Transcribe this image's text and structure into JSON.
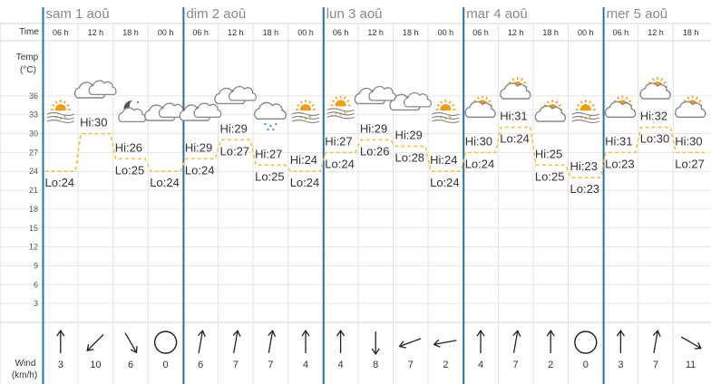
{
  "labels": {
    "time": "Time",
    "temp_line1": "Temp",
    "temp_line2": "(°C)",
    "wind_line1": "Wind",
    "wind_line2": "(km/h)"
  },
  "colors": {
    "day_divider": "#2a6fa8",
    "temp_line": "#f5c242",
    "grid": "#e6e6e6",
    "sun": "#f39c12",
    "cloud_stroke": "#888888",
    "rain": "#5aa0d8",
    "moon": "#445566"
  },
  "chart_data": {
    "type": "line",
    "title": "",
    "ylabel": "Temp (°C)",
    "y_ticks": [
      3,
      6,
      9,
      12,
      15,
      18,
      21,
      24,
      27,
      30,
      33,
      36
    ],
    "ylim": [
      0,
      39
    ],
    "days": [
      "sam 1 aoû",
      "dim 2 aoû",
      "lun 3 aoû",
      "mar 4 aoû",
      "mer 5 aoû"
    ],
    "slots": [
      {
        "day": 0,
        "hour": "06 h",
        "icon": "sun-behind-cloud-mist-icon",
        "temp": 24,
        "hi": "",
        "lo": "Lo:24",
        "wind_dir": 180,
        "wind": "3"
      },
      {
        "day": 0,
        "hour": "12 h",
        "icon": "cloudy-icon",
        "temp": 30,
        "hi": "Hi:30",
        "lo": "",
        "wind_dir": 45,
        "wind": "10"
      },
      {
        "day": 0,
        "hour": "18 h",
        "icon": "moon-cloud-icon",
        "temp": 26,
        "hi": "Hi:26",
        "lo": "Lo:25",
        "wind_dir": 330,
        "wind": "6"
      },
      {
        "day": 1,
        "hour": "00 h",
        "icon": "cloudy-icon",
        "temp": 24,
        "hi": "",
        "lo": "Lo:24",
        "wind_dir": -1,
        "wind": "0"
      },
      {
        "day": 1,
        "hour": "06 h",
        "icon": "cloudy-icon",
        "temp": 26,
        "hi": "Hi:29",
        "lo": "Lo:24",
        "wind_dir": 190,
        "wind": "6"
      },
      {
        "day": 1,
        "hour": "12 h",
        "icon": "cloudy-icon",
        "temp": 29,
        "hi": "Hi:29",
        "lo": "Lo:27",
        "wind_dir": 190,
        "wind": "7"
      },
      {
        "day": 1,
        "hour": "18 h",
        "icon": "rain-cloud-icon",
        "temp": 25,
        "hi": "Hi:27",
        "lo": "Lo:25",
        "wind_dir": 190,
        "wind": "7"
      },
      {
        "day": 2,
        "hour": "00 h",
        "icon": "sun-behind-cloud-mist-icon",
        "temp": 24,
        "hi": "Hi:24",
        "lo": "Lo:24",
        "wind_dir": 180,
        "wind": "4"
      },
      {
        "day": 2,
        "hour": "06 h",
        "icon": "sun-behind-cloud-mist-icon",
        "temp": 27,
        "hi": "Hi:27",
        "lo": "Lo:24",
        "wind_dir": 180,
        "wind": "4"
      },
      {
        "day": 2,
        "hour": "12 h",
        "icon": "cloudy-icon",
        "temp": 29,
        "hi": "Hi:29",
        "lo": "Lo:26",
        "wind_dir": 0,
        "wind": "8"
      },
      {
        "day": 2,
        "hour": "18 h",
        "icon": "cloudy-icon",
        "temp": 28,
        "hi": "Hi:29",
        "lo": "Lo:28",
        "wind_dir": 70,
        "wind": "7"
      },
      {
        "day": 3,
        "hour": "00 h",
        "icon": "sun-behind-cloud-mist-icon",
        "temp": 24,
        "hi": "Hi:24",
        "lo": "Lo:24",
        "wind_dir": 80,
        "wind": "2"
      },
      {
        "day": 3,
        "hour": "06 h",
        "icon": "sun-behind-cloud-icon",
        "temp": 27,
        "hi": "Hi:30",
        "lo": "Lo:24",
        "wind_dir": 180,
        "wind": "4"
      },
      {
        "day": 3,
        "hour": "12 h",
        "icon": "sun-behind-cloud-icon",
        "temp": 31,
        "hi": "Hi:31",
        "lo": "Lo:24",
        "wind_dir": 190,
        "wind": "7"
      },
      {
        "day": 3,
        "hour": "18 h",
        "icon": "sun-behind-cloud-icon",
        "temp": 25,
        "hi": "Hi:25",
        "lo": "Lo:25",
        "wind_dir": 180,
        "wind": "2"
      },
      {
        "day": 4,
        "hour": "00 h",
        "icon": "sun-behind-cloud-mist-icon",
        "temp": 23,
        "hi": "Hi:23",
        "lo": "Lo:23",
        "wind_dir": -1,
        "wind": "0"
      },
      {
        "day": 4,
        "hour": "06 h",
        "icon": "sun-behind-cloud-icon",
        "temp": 27,
        "hi": "Hi:31",
        "lo": "Lo:23",
        "wind_dir": 180,
        "wind": "3"
      },
      {
        "day": 4,
        "hour": "12 h",
        "icon": "sun-behind-cloud-icon",
        "temp": 31,
        "hi": "Hi:32",
        "lo": "Lo:30",
        "wind_dir": 190,
        "wind": "7"
      },
      {
        "day": 4,
        "hour": "18 h",
        "icon": "sun-behind-cloud-icon",
        "temp": 27,
        "hi": "Hi:30",
        "lo": "Lo:27",
        "wind_dir": 300,
        "wind": "11"
      }
    ]
  }
}
